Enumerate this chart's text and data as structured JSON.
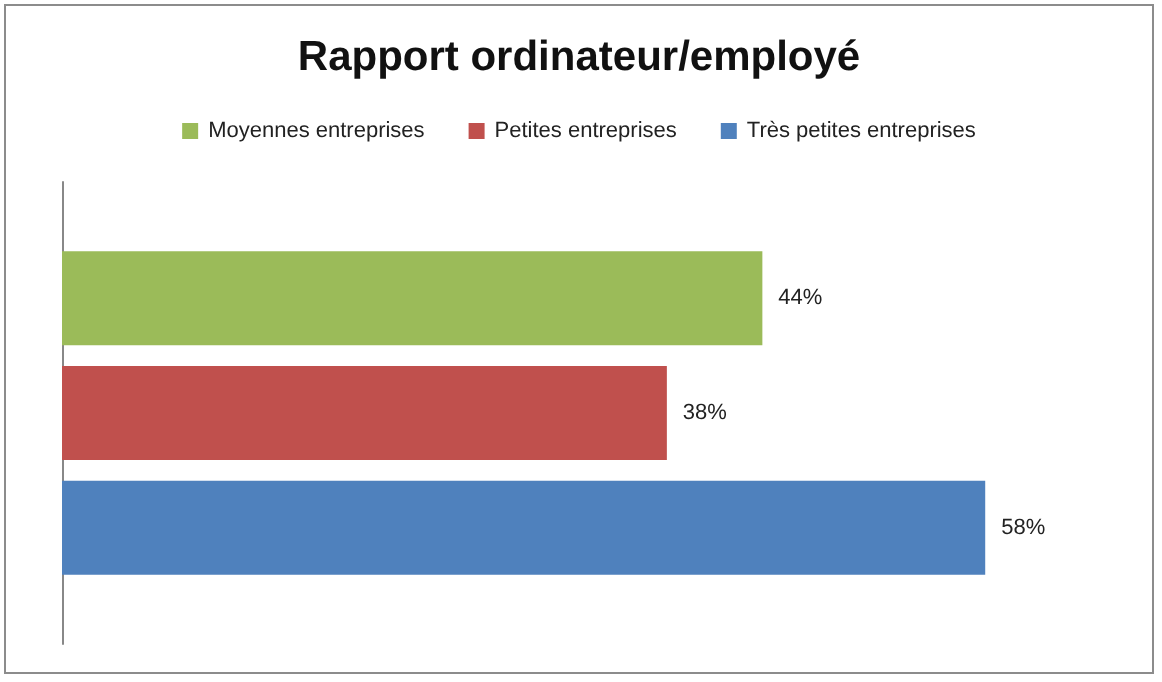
{
  "chart_data": {
    "type": "bar",
    "orientation": "horizontal",
    "tick_labels": false,
    "title": "Rapport ordinateur/employé",
    "categories": [
      null
    ],
    "series": [
      {
        "name": "Moyennes entreprises",
        "color": "#9bbb59",
        "values": [
          44
        ],
        "value_labels": [
          "44%"
        ]
      },
      {
        "name": "Petites entreprises",
        "color": "#c0504d",
        "values": [
          38
        ],
        "value_labels": [
          "38%"
        ]
      },
      {
        "name": "Très petites entreprises",
        "color": "#4f81bd",
        "values": [
          58
        ],
        "value_labels": [
          "58%"
        ]
      }
    ],
    "legend": "top"
  }
}
